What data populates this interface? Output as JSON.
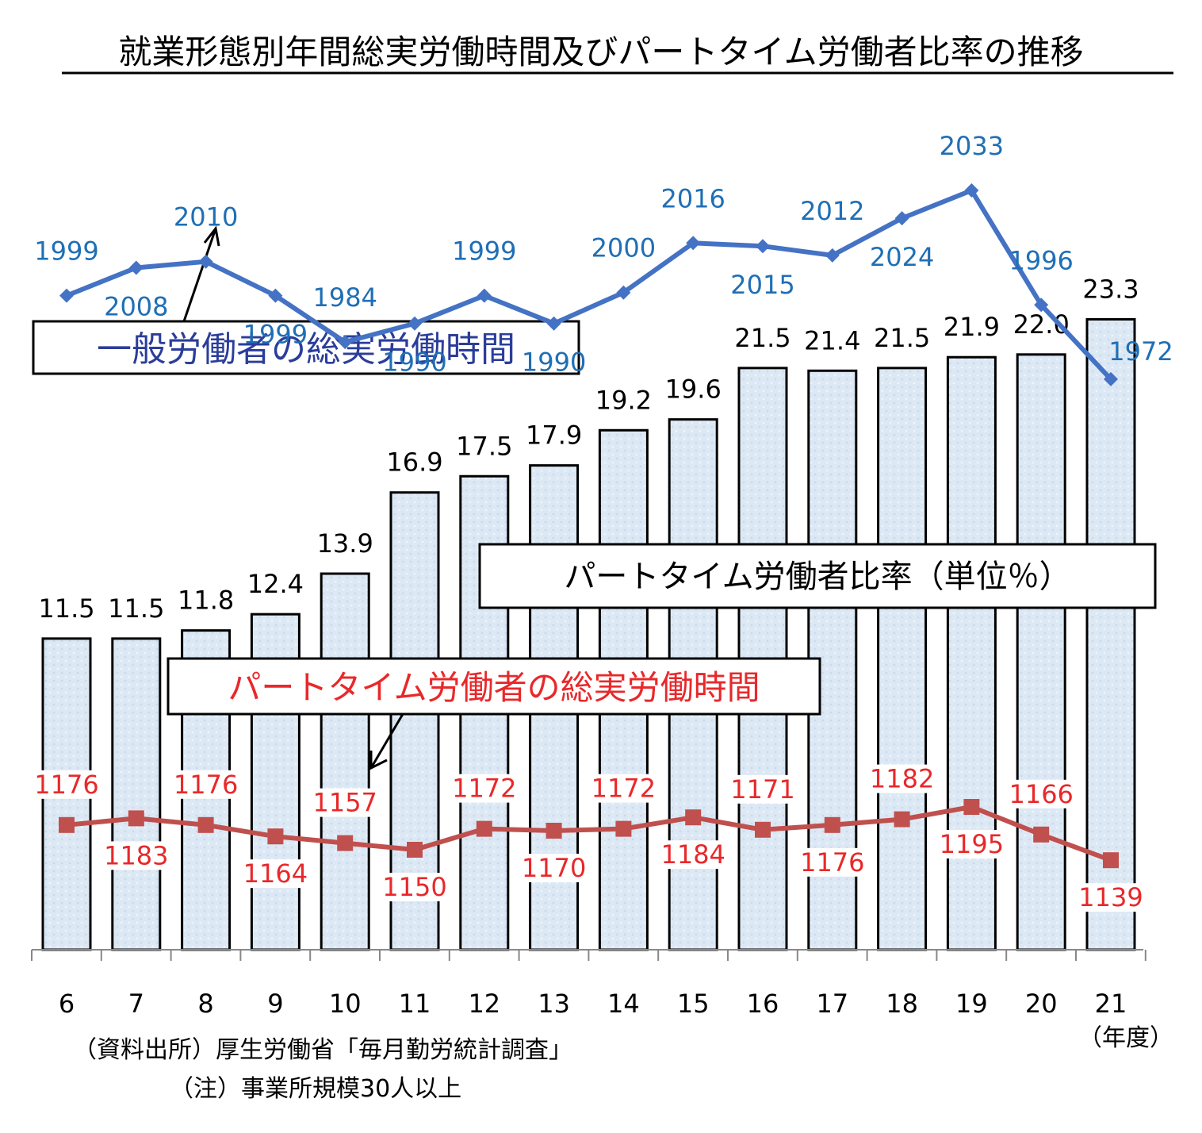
{
  "chart_data": {
    "type": "bar",
    "title": "就業形態別年間総実労働時間及びパートタイム労働者比率の推移",
    "categories": [
      "6",
      "7",
      "8",
      "9",
      "10",
      "11",
      "12",
      "13",
      "14",
      "15",
      "16",
      "17",
      "18",
      "19",
      "20",
      "21"
    ],
    "x_unit": "（年度）",
    "bar_series": {
      "name": "パートタイム労働者比率（単位％）",
      "values": [
        "11.5",
        "11.5",
        "11.8",
        "12.4",
        "13.9",
        "16.9",
        "17.5",
        "17.9",
        "19.2",
        "19.6",
        "21.5",
        "21.4",
        "21.5",
        "21.9",
        "22.0",
        "23.3"
      ]
    },
    "line_series": [
      {
        "name": "一般労働者の総実労働時間",
        "color": "#4472c4",
        "values": [
          1999,
          2008,
          2010,
          1999,
          1984,
          1990,
          1999,
          1990,
          2000,
          2016,
          2015,
          2012,
          2024,
          2033,
          1996,
          1972
        ]
      },
      {
        "name": "パートタイム労働者の総実労働時間",
        "color": "#c0504d",
        "values": [
          1176,
          1183,
          1176,
          1164,
          1157,
          1150,
          1172,
          1170,
          1172,
          1184,
          1171,
          1176,
          1182,
          1195,
          1166,
          1139
        ]
      }
    ],
    "ylim_bar": [
      0,
      27
    ]
  },
  "notes": {
    "source": "（資料出所）厚生労働省「毎月勤労統計調査」",
    "remark": "（注）事業所規模30人以上"
  },
  "colors": {
    "bar_fill": "#dce8f4",
    "general_line": "#4472c4",
    "general_label": "#1f6fb5",
    "part_line": "#c0504d",
    "part_label": "#e8282a",
    "box_blue_text": "#2b3d9a"
  }
}
